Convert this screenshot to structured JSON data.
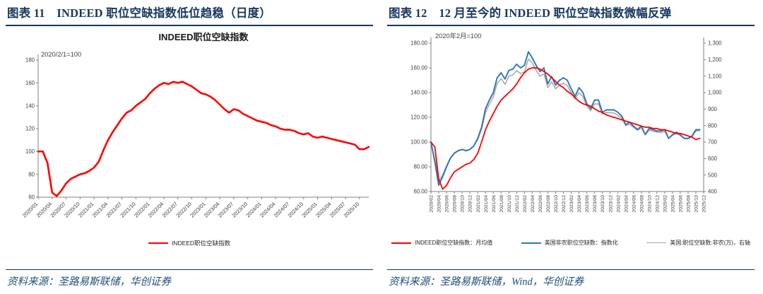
{
  "colors": {
    "header_navy": "#17375e",
    "source_blue": "#1f4e79",
    "series_red": "#ff0000",
    "series_blue": "#2e75b6",
    "series_gray": "#a6a6a6"
  },
  "chart_data": [
    {
      "id": "fig11",
      "type": "line",
      "figure_title": "图表 11　INDEED 职位空缺指数低位趋稳（日度）",
      "chart_title": "INDEED职位空缺指数",
      "note": "2020/2/1=100",
      "source": "资料来源：圣路易斯联储，华创证券",
      "x_total_months": 71,
      "x_label_every": 3,
      "x_tick_labels": [
        "2020/01",
        "2020/04",
        "2020/07",
        "2020/10",
        "2021/01",
        "2021/04",
        "2021/07",
        "2021/10",
        "2022/01",
        "2022/04",
        "2022/07",
        "2022/10",
        "2023/01",
        "2023/04",
        "2023/07",
        "2023/10",
        "2024/01",
        "2024/04",
        "2024/07",
        "2024/10",
        "2025/01",
        "2025/04",
        "2025/07",
        "2025/10"
      ],
      "y_axis": {
        "min": 60,
        "max": 180,
        "step": 20,
        "labels": [
          "60",
          "80",
          "100",
          "120",
          "140",
          "160",
          "180"
        ]
      },
      "series": [
        {
          "name": "INDEED职位空缺指数",
          "color": "#ff0000",
          "axis": "left",
          "stroke_width": 2.6,
          "values": [
            100,
            100,
            90,
            64,
            61,
            66,
            72,
            76,
            78,
            80,
            81,
            83,
            86,
            91,
            101,
            110,
            117,
            123,
            129,
            134,
            136,
            140,
            143,
            146,
            151,
            155,
            158,
            160,
            159,
            161,
            160,
            161,
            159,
            157,
            154,
            151,
            150,
            148,
            145,
            141,
            137,
            134,
            137,
            136,
            133,
            131,
            129,
            127,
            126,
            125,
            123,
            122,
            120,
            119,
            119,
            118,
            116,
            115,
            116,
            113,
            112,
            113,
            112,
            111,
            110,
            109,
            108,
            107,
            106,
            102,
            102,
            104
          ]
        }
      ]
    },
    {
      "id": "fig12",
      "type": "line",
      "figure_title": "图表 12　12 月至今的 INDEED 职位空缺指数微幅反弹",
      "chart_title": "",
      "note": "2020年2月=100",
      "source": "资料来源：圣路易斯联储，Wind，华创证券",
      "x_total_months": 70,
      "x_label_every": 2,
      "x_tick_labels": [
        "2020/02",
        "2020/04",
        "2020/06",
        "2020/08",
        "2020/10",
        "2020/12",
        "2021/02",
        "2021/04",
        "2021/06",
        "2021/08",
        "2021/10",
        "2021/12",
        "2022/02",
        "2022/04",
        "2022/06",
        "2022/08",
        "2022/10",
        "2022/12",
        "2023/02",
        "2023/04",
        "2023/06",
        "2023/08",
        "2023/10",
        "2023/12",
        "2024/02",
        "2024/04",
        "2024/06",
        "2024/08",
        "2024/10",
        "2024/12",
        "2025/02",
        "2025/04",
        "2025/06",
        "2025/08",
        "2025/10",
        "2025/12"
      ],
      "y_axis": {
        "min": 60,
        "max": 180,
        "step": 20,
        "labels": [
          "60.00",
          "80.00",
          "100.00",
          "120.00",
          "140.00",
          "160.00",
          "180.00"
        ]
      },
      "y2_axis": {
        "min": 400,
        "max": 1300,
        "step": 100,
        "labels": [
          "400",
          "500",
          "600",
          "700",
          "800",
          "900",
          "1,000",
          "1,100",
          "1,200",
          "1,300"
        ]
      },
      "series": [
        {
          "name": "INDEED职位空缺指数：月均值",
          "color": "#ff0000",
          "axis": "left",
          "stroke_width": 1.8,
          "values": [
            100,
            96,
            70,
            62,
            65,
            71,
            76,
            78,
            80,
            82,
            83,
            86,
            91,
            100,
            110,
            117,
            123,
            129,
            134,
            137,
            140,
            143,
            147,
            152,
            156,
            159,
            160,
            160,
            159,
            157,
            155,
            152,
            149,
            146,
            144,
            141,
            139,
            136,
            133,
            131,
            130,
            129,
            127,
            125,
            124,
            122,
            121,
            120,
            119,
            118,
            117,
            116,
            115,
            114,
            113,
            112,
            112,
            111,
            111,
            110,
            110,
            109,
            108,
            107,
            107,
            106,
            105,
            104,
            102,
            103
          ]
        },
        {
          "name": "美国非农职位空缺数：指数化",
          "color": "#2e75b6",
          "axis": "left",
          "stroke_width": 1.9,
          "values": [
            100,
            84,
            65,
            72,
            80,
            87,
            91,
            93,
            94,
            93,
            94,
            97,
            103,
            112,
            127,
            134,
            140,
            152,
            156,
            151,
            158,
            159,
            163,
            160,
            162,
            173,
            168,
            162,
            157,
            160,
            147,
            153,
            146,
            150,
            152,
            150,
            143,
            137,
            144,
            140,
            131,
            127,
            134,
            134,
            124,
            126,
            126,
            126,
            124,
            121,
            114,
            116,
            113,
            110,
            113,
            106,
            111,
            110,
            109,
            109,
            110,
            103,
            106,
            108,
            106,
            103,
            103,
            105,
            110,
            110
          ]
        },
        {
          "name": "美国:职位空缺数:非农(万)，右轴",
          "color": "#a6a6a6",
          "axis": "right",
          "stroke_width": 1.5,
          "values": [
            700,
            592,
            462,
            500,
            556,
            605,
            634,
            650,
            656,
            649,
            655,
            676,
            716,
            778,
            880,
            930,
            973,
            1055,
            1085,
            1050,
            1100,
            1107,
            1133,
            1115,
            1126,
            1203,
            1180,
            1135,
            1100,
            1113,
            1030,
            1065,
            1023,
            1045,
            1057,
            1043,
            1000,
            960,
            1000,
            975,
            917,
            890,
            930,
            932,
            868,
            880,
            878,
            876,
            862,
            843,
            800,
            807,
            790,
            772,
            786,
            745,
            772,
            766,
            760,
            758,
            764,
            722,
            740,
            752,
            740,
            722,
            720,
            732,
            766,
            770
          ]
        }
      ]
    }
  ]
}
